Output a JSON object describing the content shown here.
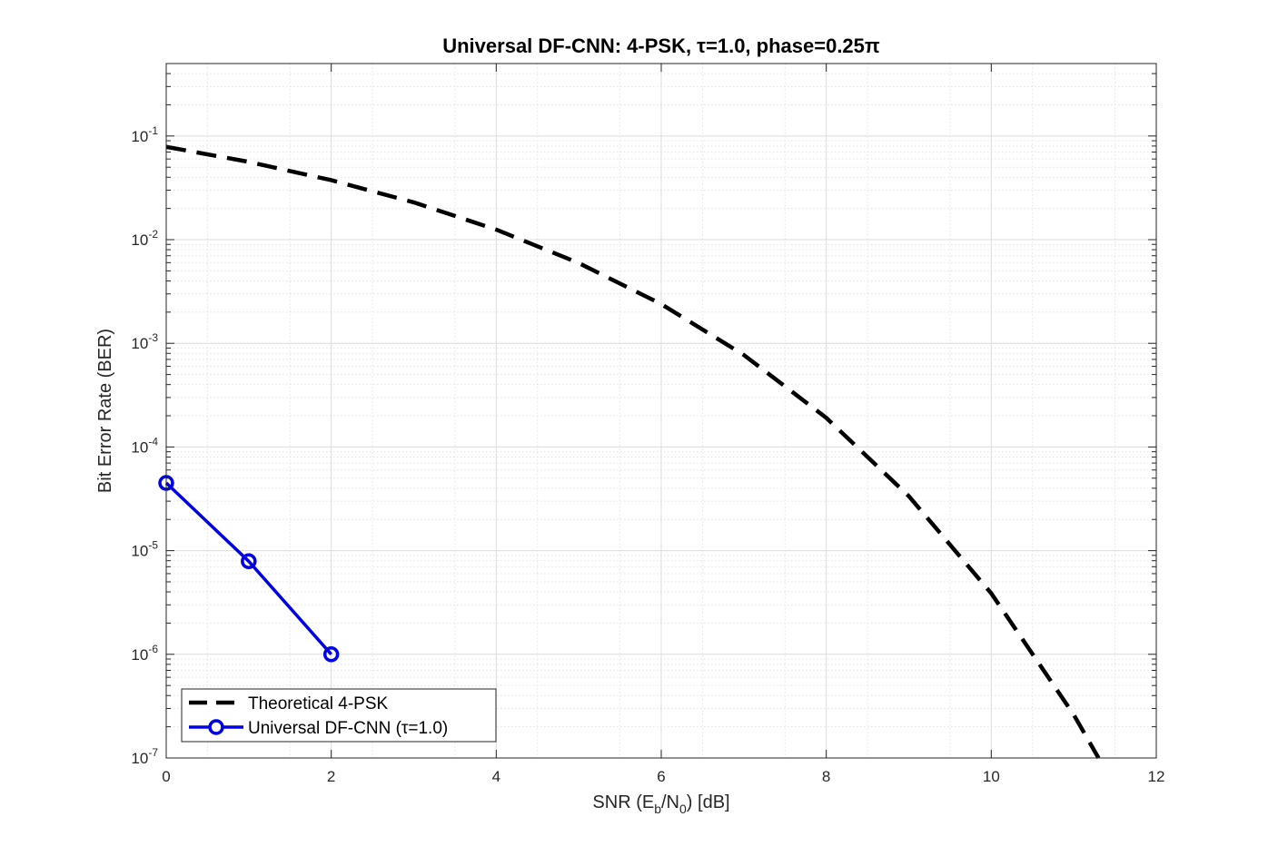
{
  "chart_data": {
    "type": "line",
    "title": "Universal DF-CNN: 4-PSK, τ=1.0, phase=0.25π",
    "xlabel": {
      "parts": [
        {
          "text": "SNR  (E"
        },
        {
          "text": "b",
          "sub": true
        },
        {
          "text": "/N"
        },
        {
          "text": "0",
          "sub": true
        },
        {
          "text": ")  [dB]"
        }
      ]
    },
    "ylabel": "Bit Error Rate (BER)",
    "xlim": [
      0,
      12
    ],
    "ylim": [
      1e-07,
      0.5
    ],
    "yscale": "log",
    "grid": true,
    "minor_grid": true,
    "x_ticks": [
      "0",
      "2",
      "4",
      "6",
      "8",
      "10",
      "12"
    ],
    "y_ticks": [
      {
        "base": "10",
        "exp": "-7"
      },
      {
        "base": "10",
        "exp": "-6"
      },
      {
        "base": "10",
        "exp": "-5"
      },
      {
        "base": "10",
        "exp": "-4"
      },
      {
        "base": "10",
        "exp": "-3"
      },
      {
        "base": "10",
        "exp": "-2"
      },
      {
        "base": "10",
        "exp": "-1"
      }
    ],
    "legend_position": "bottom-left",
    "series": [
      {
        "name": "Theoretical 4-PSK",
        "color": "#000000",
        "style": "dashed",
        "marker": "none",
        "x": [
          0,
          1,
          2,
          3,
          4,
          5,
          6,
          7,
          8,
          9,
          10,
          11,
          11.3
        ],
        "y": [
          0.0786,
          0.0563,
          0.0375,
          0.0229,
          0.0125,
          0.00595,
          0.00239,
          0.000773,
          0.000191,
          3.36e-05,
          3.87e-06,
          2.61e-07,
          1e-07
        ]
      },
      {
        "name": "Universal DF-CNN (τ=1.0)",
        "color": "#0000e6",
        "style": "solid",
        "marker": "circle",
        "x": [
          0,
          1,
          2
        ],
        "y": [
          4.5e-05,
          7.9e-06,
          1e-06
        ]
      }
    ]
  }
}
